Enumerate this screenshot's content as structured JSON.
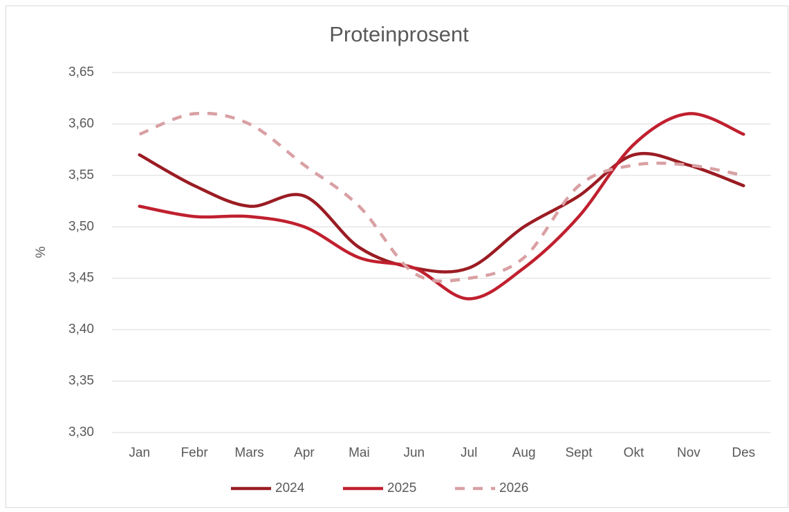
{
  "chart_data": {
    "type": "line",
    "title": "Proteinprosent",
    "y_label": "%",
    "categories": [
      "Jan",
      "Febr",
      "Mars",
      "Apr",
      "Mai",
      "Jun",
      "Jul",
      "Aug",
      "Sept",
      "Okt",
      "Nov",
      "Des"
    ],
    "series": [
      {
        "name": "2024",
        "color": "#9b1c23",
        "dashed": false,
        "values": [
          3.57,
          3.54,
          3.52,
          3.53,
          3.48,
          3.46,
          3.46,
          3.5,
          3.53,
          3.57,
          3.56,
          3.54
        ]
      },
      {
        "name": "2025",
        "color": "#c0202f",
        "dashed": false,
        "values": [
          3.52,
          3.51,
          3.51,
          3.5,
          3.47,
          3.46,
          3.43,
          3.46,
          3.51,
          3.58,
          3.61,
          3.59
        ]
      },
      {
        "name": "2026",
        "color": "#d9a0a3",
        "dashed": true,
        "values": [
          3.59,
          3.61,
          3.6,
          3.56,
          3.52,
          3.455,
          3.45,
          3.47,
          3.54,
          3.56,
          3.56,
          3.55
        ]
      }
    ],
    "ylim": [
      3.3,
      3.65
    ],
    "yticks": [
      {
        "value": 3.3,
        "label": "3,30"
      },
      {
        "value": 3.35,
        "label": "3,35"
      },
      {
        "value": 3.4,
        "label": "3,40"
      },
      {
        "value": 3.45,
        "label": "3,45"
      },
      {
        "value": 3.5,
        "label": "3,50"
      },
      {
        "value": 3.55,
        "label": "3,55"
      },
      {
        "value": 3.6,
        "label": "3,60"
      },
      {
        "value": 3.65,
        "label": "3,65"
      }
    ],
    "grid": true,
    "smooth": true,
    "legend": "bottom"
  }
}
